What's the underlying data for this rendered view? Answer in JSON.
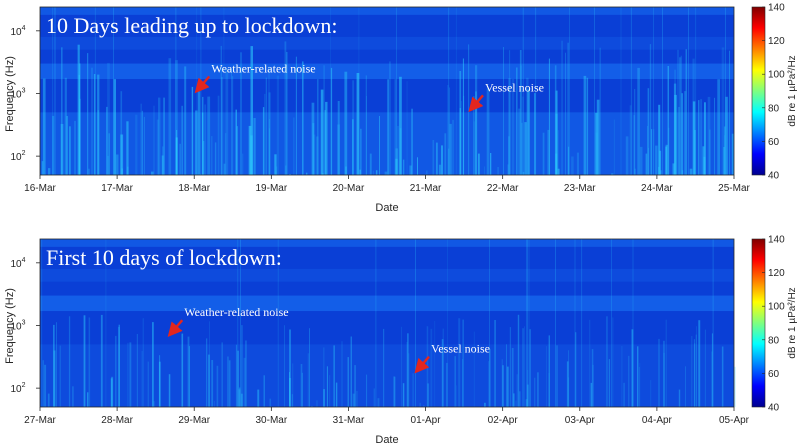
{
  "chart_data": [
    {
      "type": "heatmap",
      "title": "10 Days leading up to lockdown:",
      "xlabel": "Date",
      "ylabel": "Frequency (Hz)",
      "y_scale": "log",
      "ylim": [
        50,
        24000
      ],
      "y_ticks": [
        {
          "value": 100,
          "base": "10",
          "exp": "2"
        },
        {
          "value": 1000,
          "base": "10",
          "exp": "3"
        },
        {
          "value": 10000,
          "base": "10",
          "exp": "4"
        }
      ],
      "x_ticks": [
        "16-Mar",
        "17-Mar",
        "18-Mar",
        "19-Mar",
        "20-Mar",
        "21-Mar",
        "22-Mar",
        "23-Mar",
        "24-Mar",
        "25-Mar"
      ],
      "colorbar": {
        "label": "dB re 1 µPa²/Hz",
        "ticks": [
          "140",
          "120",
          "100",
          "80",
          "60",
          "40"
        ],
        "range": [
          40,
          140
        ]
      },
      "annotations": [
        {
          "text": "Weather-related noise",
          "x_day": 2.0,
          "y_hz": 1000
        },
        {
          "text": "Vessel noise",
          "x_day": 5.55,
          "y_hz": 500
        }
      ],
      "noise_level": "higher"
    },
    {
      "type": "heatmap",
      "title": "First 10 days of lockdown:",
      "xlabel": "Date",
      "ylabel": "Frequency (Hz)",
      "y_scale": "log",
      "ylim": [
        50,
        24000
      ],
      "y_ticks": [
        {
          "value": 100,
          "base": "10",
          "exp": "2"
        },
        {
          "value": 1000,
          "base": "10",
          "exp": "3"
        },
        {
          "value": 10000,
          "base": "10",
          "exp": "4"
        }
      ],
      "x_ticks": [
        "27-Mar",
        "28-Mar",
        "29-Mar",
        "30-Mar",
        "31-Mar",
        "01-Apr",
        "02-Apr",
        "03-Apr",
        "04-Apr",
        "05-Apr"
      ],
      "colorbar": {
        "label": "dB re 1 µPa²/Hz",
        "ticks": [
          "140",
          "120",
          "100",
          "80",
          "60",
          "40"
        ],
        "range": [
          40,
          140
        ]
      },
      "annotations": [
        {
          "text": "Weather-related noise",
          "x_day": 1.65,
          "y_hz": 650
        },
        {
          "text": "Vessel noise",
          "x_day": 4.85,
          "y_hz": 170
        }
      ],
      "noise_level": "lower"
    }
  ],
  "colors": {
    "background_blue": "#0a3fd6",
    "band_light": "#1f86ff",
    "streak": "#2fd6ff",
    "arrow": "#e3261e"
  }
}
